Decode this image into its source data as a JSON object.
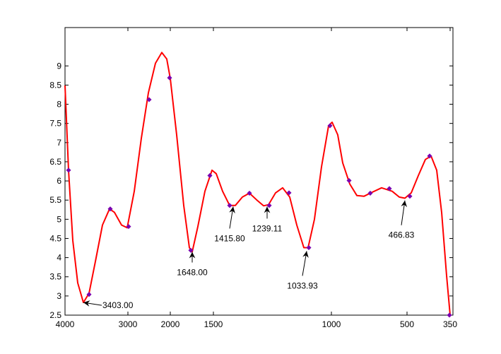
{
  "chart_data": {
    "type": "line",
    "xlim": [
      0,
      549
    ],
    "ylim": [
      2.5,
      10
    ],
    "xticks": [
      {
        "value": 0,
        "label": "4000"
      },
      {
        "value": 89,
        "label": "3000"
      },
      {
        "value": 149,
        "label": "2000"
      },
      {
        "value": 210,
        "label": "1500"
      },
      {
        "value": 377,
        "label": "1000"
      },
      {
        "value": 484,
        "label": "500"
      },
      {
        "value": 545,
        "label": "350"
      }
    ],
    "yticks": [
      2.5,
      3,
      3.5,
      4,
      4.5,
      5,
      5.5,
      6,
      6.5,
      7,
      7.5,
      8,
      8.5,
      9
    ],
    "series": [
      {
        "color": "#ff0000",
        "x": [
          0,
          5,
          11,
          18,
          26,
          34,
          43,
          53,
          63,
          70,
          80,
          88,
          98,
          108,
          118,
          128,
          137,
          144,
          149,
          158,
          168,
          176,
          180,
          188,
          198,
          208,
          214,
          223,
          233,
          241,
          251,
          261,
          271,
          281,
          288,
          298,
          308,
          318,
          328,
          338,
          344,
          353,
          363,
          373,
          378,
          386,
          393,
          403,
          413,
          423,
          433,
          448,
          463,
          473,
          481,
          490,
          500,
          510,
          518,
          526,
          533,
          540,
          545
        ],
        "values": [
          8.49,
          6.28,
          4.45,
          3.34,
          2.83,
          3.07,
          3.9,
          4.85,
          5.27,
          5.18,
          4.85,
          4.78,
          5.73,
          7.11,
          8.3,
          9.07,
          9.35,
          9.18,
          8.67,
          7.2,
          5.36,
          4.26,
          4.15,
          4.81,
          5.73,
          6.28,
          6.19,
          5.73,
          5.36,
          5.36,
          5.58,
          5.68,
          5.51,
          5.35,
          5.38,
          5.69,
          5.82,
          5.58,
          4.85,
          4.26,
          4.26,
          5.0,
          6.37,
          7.44,
          7.53,
          7.2,
          6.47,
          5.92,
          5.62,
          5.6,
          5.69,
          5.82,
          5.73,
          5.58,
          5.55,
          5.69,
          6.14,
          6.56,
          6.65,
          6.28,
          5.18,
          3.53,
          2.5
        ]
      },
      {
        "color": "#7a00b0",
        "marker": true,
        "x": [
          5,
          34,
          64,
          90,
          119,
          148,
          178,
          205,
          233,
          261,
          289,
          317,
          345,
          375,
          402,
          432,
          459,
          488,
          516,
          544
        ],
        "values": [
          6.28,
          3.04,
          5.27,
          4.81,
          8.12,
          8.69,
          4.19,
          6.14,
          5.36,
          5.68,
          5.36,
          5.69,
          4.26,
          7.44,
          6.01,
          5.68,
          5.8,
          5.6,
          6.65,
          2.5
        ]
      }
    ],
    "annotations": [
      {
        "text": "3403.00",
        "x": 26,
        "y": 2.83
      },
      {
        "text": "1648.00",
        "x": 180,
        "y": 4.15
      },
      {
        "text": "1415.80",
        "x": 238,
        "y": 5.33
      },
      {
        "text": "1239.11",
        "x": 286,
        "y": 5.33
      },
      {
        "text": "1033.93",
        "x": 342,
        "y": 4.17
      },
      {
        "text": "466.83",
        "x": 481,
        "y": 5.49
      }
    ]
  }
}
